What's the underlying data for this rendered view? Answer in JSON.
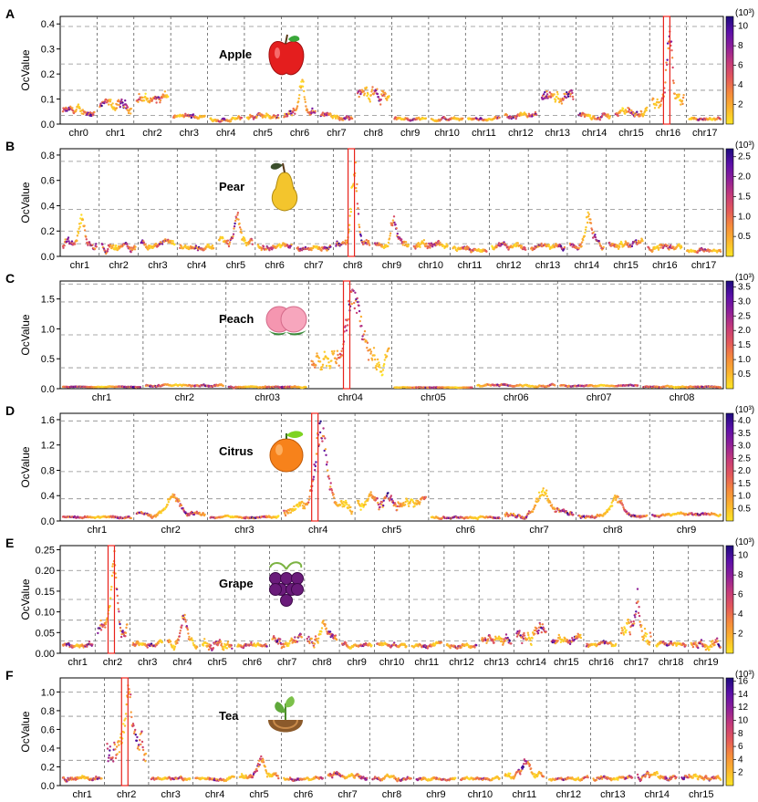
{
  "colors": {
    "colormap": [
      "#fde725",
      "#fbb52e",
      "#f58a3c",
      "#e3585b",
      "#c43a7a",
      "#8e1f98",
      "#5b0fa8",
      "#1d0b7d"
    ],
    "highlight_box": "#e8221b",
    "gridline": "#8c8c8c"
  },
  "chart_data": [
    {
      "type": "scatter",
      "panel": "A",
      "fruit": "Apple",
      "icon": "apple-icon",
      "ylabel": "OcValue",
      "ylim": [
        0,
        0.43
      ],
      "yticks": [
        0.0,
        0.1,
        0.2,
        0.3,
        0.4
      ],
      "ytick_labels": [
        "0.0",
        "0.1",
        "0.2",
        "0.3",
        "0.4"
      ],
      "hlines": [
        0.035,
        0.135,
        0.24,
        0.39
      ],
      "colorbar": {
        "unit": "(10³)",
        "max": 11,
        "ticks": [
          2,
          4,
          6,
          8,
          10
        ],
        "tick_labels": [
          "2",
          "4",
          "6",
          "8",
          "10"
        ]
      },
      "chromosomes": [
        {
          "name": "chr0",
          "level": 0.05,
          "noise": 0.03
        },
        {
          "name": "chr1",
          "level": 0.07,
          "noise": 0.04
        },
        {
          "name": "chr2",
          "level": 0.1,
          "noise": 0.04
        },
        {
          "name": "chr3",
          "level": 0.03,
          "noise": 0.015
        },
        {
          "name": "chr4",
          "level": 0.02,
          "noise": 0.015
        },
        {
          "name": "chr5",
          "level": 0.03,
          "noise": 0.02
        },
        {
          "name": "chr6",
          "level": 0.04,
          "noise": 0.03,
          "peak": 0.18
        },
        {
          "name": "chr7",
          "level": 0.03,
          "noise": 0.02
        },
        {
          "name": "chr8",
          "level": 0.12,
          "noise": 0.05
        },
        {
          "name": "chr9",
          "level": 0.02,
          "noise": 0.01
        },
        {
          "name": "chr10",
          "level": 0.02,
          "noise": 0.01
        },
        {
          "name": "chr11",
          "level": 0.02,
          "noise": 0.01
        },
        {
          "name": "chr12",
          "level": 0.03,
          "noise": 0.02
        },
        {
          "name": "chr13",
          "level": 0.1,
          "noise": 0.04
        },
        {
          "name": "chr14",
          "level": 0.03,
          "noise": 0.02
        },
        {
          "name": "chr15",
          "level": 0.05,
          "noise": 0.03
        },
        {
          "name": "chr16",
          "level": 0.1,
          "noise": 0.05,
          "peak": 0.42
        },
        {
          "name": "chr17",
          "level": 0.02,
          "noise": 0.01
        }
      ],
      "highlight_chr": "chr16"
    },
    {
      "type": "scatter",
      "panel": "B",
      "fruit": "Pear",
      "icon": "pear-icon",
      "ylabel": "OcValue",
      "ylim": [
        0,
        0.85
      ],
      "yticks": [
        0.0,
        0.2,
        0.4,
        0.6,
        0.8
      ],
      "ytick_labels": [
        "0.0",
        "0.2",
        "0.4",
        "0.6",
        "0.8"
      ],
      "hlines": [
        0.1,
        0.2,
        0.37,
        0.75
      ],
      "colorbar": {
        "unit": "(10³)",
        "max": 2.7,
        "ticks": [
          0.5,
          1.0,
          1.5,
          2.0,
          2.5
        ],
        "tick_labels": [
          "0.5",
          "1.0",
          "1.5",
          "2.0",
          "2.5"
        ]
      },
      "chromosomes": [
        {
          "name": "chr1",
          "level": 0.1,
          "noise": 0.06,
          "peak": 0.35
        },
        {
          "name": "chr2",
          "level": 0.08,
          "noise": 0.05
        },
        {
          "name": "chr3",
          "level": 0.1,
          "noise": 0.05
        },
        {
          "name": "chr4",
          "level": 0.07,
          "noise": 0.04
        },
        {
          "name": "chr5",
          "level": 0.12,
          "noise": 0.07,
          "peak": 0.33
        },
        {
          "name": "chr6",
          "level": 0.08,
          "noise": 0.04
        },
        {
          "name": "chr7",
          "level": 0.07,
          "noise": 0.04
        },
        {
          "name": "chr8",
          "level": 0.1,
          "noise": 0.05,
          "peak": 0.82
        },
        {
          "name": "chr9",
          "level": 0.1,
          "noise": 0.05,
          "peak": 0.35
        },
        {
          "name": "chr10",
          "level": 0.08,
          "noise": 0.05
        },
        {
          "name": "chr11",
          "level": 0.06,
          "noise": 0.03
        },
        {
          "name": "chr12",
          "level": 0.08,
          "noise": 0.04
        },
        {
          "name": "chr13",
          "level": 0.07,
          "noise": 0.04
        },
        {
          "name": "chr14",
          "level": 0.12,
          "noise": 0.07,
          "peak": 0.35
        },
        {
          "name": "chr15",
          "level": 0.1,
          "noise": 0.05
        },
        {
          "name": "chr16",
          "level": 0.08,
          "noise": 0.04
        },
        {
          "name": "chr17",
          "level": 0.05,
          "noise": 0.03
        }
      ],
      "highlight_chr": "chr8"
    },
    {
      "type": "scatter",
      "panel": "C",
      "fruit": "Peach",
      "icon": "peach-icon",
      "ylabel": "OcValue",
      "ylim": [
        0,
        1.8
      ],
      "yticks": [
        0.0,
        0.5,
        1.0,
        1.5
      ],
      "ytick_labels": [
        "0.0",
        "0.5",
        "1.0",
        "1.5"
      ],
      "hlines": [
        0.35,
        0.9,
        1.45,
        1.75
      ],
      "colorbar": {
        "unit": "(10³)",
        "max": 3.7,
        "ticks": [
          0.5,
          1.0,
          1.5,
          2.0,
          2.5,
          3.0,
          3.5
        ],
        "tick_labels": [
          "0.5",
          "1.0",
          "1.5",
          "2.0",
          "2.5",
          "3.0",
          "3.5"
        ]
      },
      "chromosomes": [
        {
          "name": "chr1",
          "level": 0.03,
          "noise": 0.01
        },
        {
          "name": "chr2",
          "level": 0.05,
          "noise": 0.03
        },
        {
          "name": "chr03",
          "level": 0.03,
          "noise": 0.02
        },
        {
          "name": "chr04",
          "level": 0.5,
          "noise": 0.3,
          "peak": 1.75
        },
        {
          "name": "chr05",
          "level": 0.02,
          "noise": 0.01
        },
        {
          "name": "chr06",
          "level": 0.05,
          "noise": 0.03
        },
        {
          "name": "chr07",
          "level": 0.05,
          "noise": 0.02
        },
        {
          "name": "chr08",
          "level": 0.03,
          "noise": 0.02
        }
      ],
      "highlight_chr": "chr04"
    },
    {
      "type": "scatter",
      "panel": "D",
      "fruit": "Citrus",
      "icon": "citrus-icon",
      "ylabel": "OcValue",
      "ylim": [
        0,
        1.7
      ],
      "yticks": [
        0.0,
        0.4,
        0.8,
        1.2,
        1.6
      ],
      "ytick_labels": [
        "0.0",
        "0.4",
        "0.8",
        "1.2",
        "1.6"
      ],
      "hlines": [
        0.35,
        0.78,
        1.58
      ],
      "colorbar": {
        "unit": "(10³)",
        "max": 4.3,
        "ticks": [
          0.5,
          1.0,
          1.5,
          2.0,
          2.5,
          3.0,
          3.5,
          4.0
        ],
        "tick_labels": [
          "0.5",
          "1.0",
          "1.5",
          "2.0",
          "2.5",
          "3.0",
          "3.5",
          "4.0"
        ]
      },
      "chromosomes": [
        {
          "name": "chr1",
          "level": 0.06,
          "noise": 0.03
        },
        {
          "name": "chr2",
          "level": 0.1,
          "noise": 0.07,
          "peak": 0.45
        },
        {
          "name": "chr3",
          "level": 0.06,
          "noise": 0.03
        },
        {
          "name": "chr4",
          "level": 0.2,
          "noise": 0.15,
          "peak": 1.65
        },
        {
          "name": "chr5",
          "level": 0.3,
          "noise": 0.15
        },
        {
          "name": "chr6",
          "level": 0.06,
          "noise": 0.03
        },
        {
          "name": "chr7",
          "level": 0.1,
          "noise": 0.08,
          "peak": 0.5
        },
        {
          "name": "chr8",
          "level": 0.08,
          "noise": 0.05,
          "peak": 0.4
        },
        {
          "name": "chr9",
          "level": 0.1,
          "noise": 0.04
        }
      ],
      "highlight_chr": "chr4"
    },
    {
      "type": "scatter",
      "panel": "E",
      "fruit": "Grape",
      "icon": "grape-icon",
      "ylabel": "OcValue",
      "ylim": [
        0,
        0.26
      ],
      "yticks": [
        0.0,
        0.05,
        0.1,
        0.15,
        0.2,
        0.25
      ],
      "ytick_labels": [
        "0.00",
        "0.05",
        "0.10",
        "0.15",
        "0.20",
        "0.25"
      ],
      "hlines": [
        0.03,
        0.08,
        0.13,
        0.2
      ],
      "colorbar": {
        "unit": "(10³)",
        "max": 11,
        "ticks": [
          2,
          4,
          6,
          8,
          10
        ],
        "tick_labels": [
          "2",
          "4",
          "6",
          "8",
          "10"
        ]
      },
      "chromosomes": [
        {
          "name": "chr1",
          "level": 0.02,
          "noise": 0.01
        },
        {
          "name": "chr2",
          "level": 0.06,
          "noise": 0.04,
          "peak": 0.24
        },
        {
          "name": "chr3",
          "level": 0.02,
          "noise": 0.01
        },
        {
          "name": "chr4",
          "level": 0.03,
          "noise": 0.02,
          "peak": 0.09
        },
        {
          "name": "chr5",
          "level": 0.02,
          "noise": 0.02
        },
        {
          "name": "chr6",
          "level": 0.02,
          "noise": 0.01
        },
        {
          "name": "chr7",
          "level": 0.03,
          "noise": 0.02
        },
        {
          "name": "chr8",
          "level": 0.03,
          "noise": 0.02,
          "peak": 0.08
        },
        {
          "name": "chr9",
          "level": 0.02,
          "noise": 0.01
        },
        {
          "name": "chr10",
          "level": 0.02,
          "noise": 0.01
        },
        {
          "name": "chr11",
          "level": 0.02,
          "noise": 0.01
        },
        {
          "name": "chr12",
          "level": 0.02,
          "noise": 0.01
        },
        {
          "name": "chr13",
          "level": 0.03,
          "noise": 0.02
        },
        {
          "name": "cchr14",
          "level": 0.05,
          "noise": 0.03
        },
        {
          "name": "chr15",
          "level": 0.03,
          "noise": 0.02
        },
        {
          "name": "chr16",
          "level": 0.02,
          "noise": 0.01
        },
        {
          "name": "chr17",
          "level": 0.06,
          "noise": 0.04,
          "peak": 0.15
        },
        {
          "name": "chr18",
          "level": 0.02,
          "noise": 0.01
        },
        {
          "name": "chr19",
          "level": 0.02,
          "noise": 0.02
        }
      ],
      "highlight_chr": "chr2"
    },
    {
      "type": "scatter",
      "panel": "F",
      "fruit": "Tea",
      "icon": "tea-icon",
      "ylabel": "OcValue",
      "ylim": [
        0,
        1.15
      ],
      "yticks": [
        0.0,
        0.2,
        0.4,
        0.6,
        0.8,
        1.0
      ],
      "ytick_labels": [
        "0.0",
        "0.2",
        "0.4",
        "0.6",
        "0.8",
        "1.0"
      ],
      "hlines": [
        0.27,
        0.74,
        1.0
      ],
      "colorbar": {
        "unit": "(10³)",
        "max": 16.5,
        "ticks": [
          2,
          4,
          6,
          8,
          10,
          12,
          14,
          16
        ],
        "tick_labels": [
          "2",
          "4",
          "6",
          "8",
          "10",
          "12",
          "14",
          "16"
        ]
      },
      "chromosomes": [
        {
          "name": "chr1",
          "level": 0.08,
          "noise": 0.04
        },
        {
          "name": "chr2",
          "level": 0.4,
          "noise": 0.25,
          "peak": 1.05
        },
        {
          "name": "chr3",
          "level": 0.07,
          "noise": 0.03
        },
        {
          "name": "chr4",
          "level": 0.07,
          "noise": 0.03
        },
        {
          "name": "chr5",
          "level": 0.1,
          "noise": 0.06,
          "peak": 0.35
        },
        {
          "name": "chr6",
          "level": 0.07,
          "noise": 0.03
        },
        {
          "name": "chr7",
          "level": 0.1,
          "noise": 0.05
        },
        {
          "name": "chr8",
          "level": 0.08,
          "noise": 0.04
        },
        {
          "name": "chr9",
          "level": 0.07,
          "noise": 0.03
        },
        {
          "name": "chr10",
          "level": 0.07,
          "noise": 0.03
        },
        {
          "name": "chr11",
          "level": 0.1,
          "noise": 0.06,
          "peak": 0.3
        },
        {
          "name": "chr12",
          "level": 0.07,
          "noise": 0.03
        },
        {
          "name": "chr13",
          "level": 0.08,
          "noise": 0.04
        },
        {
          "name": "chr14",
          "level": 0.1,
          "noise": 0.06
        },
        {
          "name": "chr15",
          "level": 0.08,
          "noise": 0.05
        }
      ],
      "highlight_chr": "chr2"
    }
  ]
}
